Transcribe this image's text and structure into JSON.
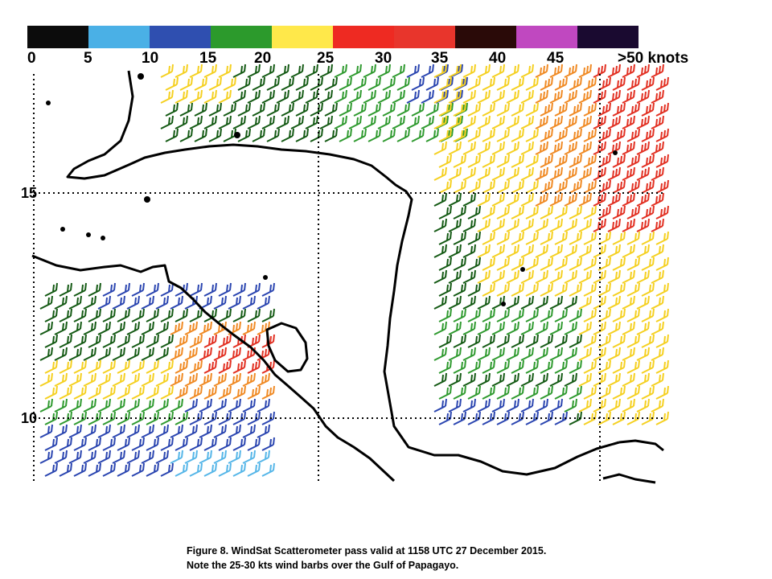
{
  "colorbar": {
    "segments": [
      "#0c0c0c",
      "#4ab0e6",
      "#2f4fb0",
      "#2c9a2c",
      "#ffe84a",
      "#ee2a22",
      "#e8352c",
      "#2a0a08",
      "#c048c0",
      "#1a0a30"
    ],
    "labels": [
      "0",
      "5",
      "10",
      "15",
      "20",
      "25",
      "30",
      "35",
      "40",
      "45",
      ">50 knots"
    ],
    "unit": "knots"
  },
  "map": {
    "latitude_labels": [
      "15",
      "10"
    ],
    "speed_colors": {
      "5-10": "#56b6e8",
      "10-15": "#2a45b0",
      "15-20": "#2f9a2f",
      "15-20 dark": "#145a14",
      "20-25": "#f5d021",
      "25-30": "#f08a24",
      "30-35": "#e23022"
    }
  },
  "caption": {
    "line1": "Figure 8. WindSat Scatterometer pass valid at 1158 UTC 27 December 2015.",
    "line2": "Note the 25-30 kts wind barbs over the Gulf of Papagayo."
  }
}
